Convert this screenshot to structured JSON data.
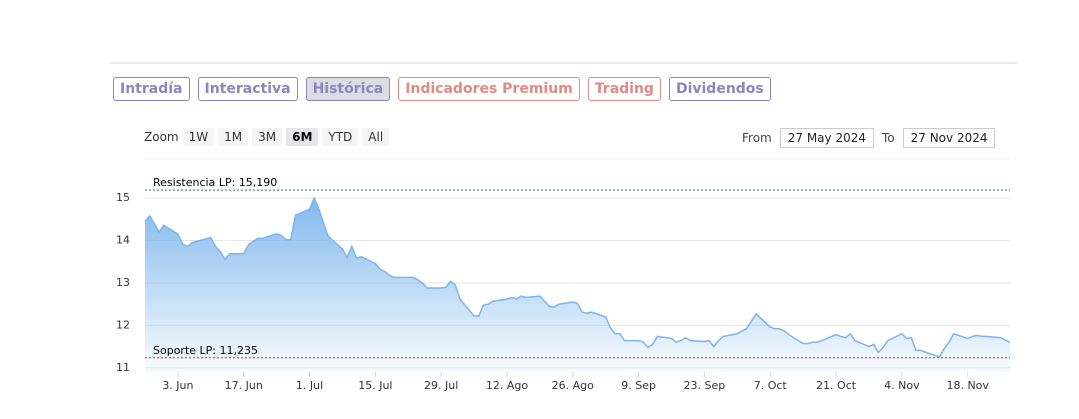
{
  "tabs": [
    {
      "label": "Intradía",
      "color": "#8e84c0"
    },
    {
      "label": "Interactiva",
      "color": "#8e84c0"
    },
    {
      "label": "Histórica",
      "color": "#8e84c0"
    },
    {
      "label": "Indicadores Premium",
      "color": "#e08a86"
    },
    {
      "label": "Trading",
      "color": "#e08a86"
    },
    {
      "label": "Dividendos",
      "color": "#8e84c0"
    }
  ],
  "active_tab": 2,
  "zoom": {
    "label": "Zoom",
    "buttons": [
      "1W",
      "1M",
      "3M",
      "6M",
      "YTD",
      "All"
    ],
    "active": 3
  },
  "range": {
    "from_label": "From",
    "from": "27 May 2024",
    "to_label": "To",
    "to": "27 Nov 2024"
  },
  "chart_data": {
    "type": "area",
    "color": "#7cb5ec",
    "grid": true,
    "xlim": [
      "2024-05-27",
      "2024-11-27"
    ],
    "xticks": [
      {
        "value": "2024-06-03",
        "label": "3. Jun"
      },
      {
        "value": "2024-06-17",
        "label": "17. Jun"
      },
      {
        "value": "2024-07-01",
        "label": "1. Jul"
      },
      {
        "value": "2024-07-15",
        "label": "15. Jul"
      },
      {
        "value": "2024-07-29",
        "label": "29. Jul"
      },
      {
        "value": "2024-08-12",
        "label": "12. Ago"
      },
      {
        "value": "2024-08-26",
        "label": "26. Ago"
      },
      {
        "value": "2024-09-09",
        "label": "9. Sep"
      },
      {
        "value": "2024-09-23",
        "label": "23. Sep"
      },
      {
        "value": "2024-10-07",
        "label": "7. Oct"
      },
      {
        "value": "2024-10-21",
        "label": "21. Oct"
      },
      {
        "value": "2024-11-04",
        "label": "4. Nov"
      },
      {
        "value": "2024-11-18",
        "label": "18. Nov"
      }
    ],
    "ylim": [
      10.9,
      15.9
    ],
    "yticks": [
      11,
      12,
      13,
      14,
      15
    ],
    "plot_lines": [
      {
        "label": "Resistencia LP: 15,190",
        "value": 15.19,
        "color": "#2e7d32"
      },
      {
        "label": "Soporte LP: 11,235",
        "value": 11.235,
        "color": "#c62828"
      }
    ],
    "x": [
      "2024-05-27",
      "2024-05-28",
      "2024-05-29",
      "2024-05-30",
      "2024-05-31",
      "2024-06-03",
      "2024-06-04",
      "2024-06-05",
      "2024-06-06",
      "2024-06-07",
      "2024-06-10",
      "2024-06-11",
      "2024-06-12",
      "2024-06-13",
      "2024-06-14",
      "2024-06-17",
      "2024-06-18",
      "2024-06-19",
      "2024-06-20",
      "2024-06-21",
      "2024-06-24",
      "2024-06-25",
      "2024-06-26",
      "2024-06-27",
      "2024-06-28",
      "2024-07-01",
      "2024-07-02",
      "2024-07-03",
      "2024-07-04",
      "2024-07-05",
      "2024-07-08",
      "2024-07-09",
      "2024-07-10",
      "2024-07-11",
      "2024-07-12",
      "2024-07-15",
      "2024-07-16",
      "2024-07-17",
      "2024-07-18",
      "2024-07-19",
      "2024-07-22",
      "2024-07-23",
      "2024-07-24",
      "2024-07-25",
      "2024-07-26",
      "2024-07-29",
      "2024-07-30",
      "2024-07-31",
      "2024-08-01",
      "2024-08-02",
      "2024-08-05",
      "2024-08-06",
      "2024-08-07",
      "2024-08-08",
      "2024-08-09",
      "2024-08-12",
      "2024-08-13",
      "2024-08-14",
      "2024-08-15",
      "2024-08-16",
      "2024-08-19",
      "2024-08-20",
      "2024-08-21",
      "2024-08-22",
      "2024-08-23",
      "2024-08-26",
      "2024-08-27",
      "2024-08-28",
      "2024-08-29",
      "2024-08-30",
      "2024-09-02",
      "2024-09-03",
      "2024-09-04",
      "2024-09-05",
      "2024-09-06",
      "2024-09-09",
      "2024-09-10",
      "2024-09-11",
      "2024-09-12",
      "2024-09-13",
      "2024-09-16",
      "2024-09-17",
      "2024-09-18",
      "2024-09-19",
      "2024-09-20",
      "2024-09-23",
      "2024-09-24",
      "2024-09-25",
      "2024-09-26",
      "2024-09-27",
      "2024-09-30",
      "2024-10-01",
      "2024-10-02",
      "2024-10-03",
      "2024-10-04",
      "2024-10-07",
      "2024-10-08",
      "2024-10-09",
      "2024-10-10",
      "2024-10-11",
      "2024-10-14",
      "2024-10-15",
      "2024-10-16",
      "2024-10-17",
      "2024-10-18",
      "2024-10-21",
      "2024-10-22",
      "2024-10-23",
      "2024-10-24",
      "2024-10-25",
      "2024-10-28",
      "2024-10-29",
      "2024-10-30",
      "2024-10-31",
      "2024-11-01",
      "2024-11-04",
      "2024-11-05",
      "2024-11-06",
      "2024-11-07",
      "2024-11-08",
      "2024-11-11",
      "2024-11-12",
      "2024-11-13",
      "2024-11-14",
      "2024-11-15",
      "2024-11-18",
      "2024-11-19",
      "2024-11-20",
      "2024-11-21",
      "2024-11-22",
      "2024-11-25",
      "2024-11-27"
    ],
    "values": [
      14.46,
      14.58,
      14.4,
      14.2,
      14.36,
      14.15,
      13.92,
      13.86,
      13.95,
      13.98,
      14.07,
      13.86,
      13.74,
      13.55,
      13.69,
      13.69,
      13.9,
      13.98,
      14.05,
      14.05,
      14.16,
      14.12,
      14.02,
      14.02,
      14.6,
      14.74,
      15.0,
      14.74,
      14.4,
      14.1,
      13.8,
      13.6,
      13.86,
      13.58,
      13.62,
      13.46,
      13.32,
      13.27,
      13.18,
      13.13,
      13.13,
      13.13,
      13.08,
      13.0,
      12.88,
      12.88,
      12.9,
      13.04,
      12.95,
      12.62,
      12.22,
      12.22,
      12.48,
      12.5,
      12.57,
      12.62,
      12.66,
      12.62,
      12.69,
      12.66,
      12.69,
      12.57,
      12.45,
      12.43,
      12.5,
      12.55,
      12.52,
      12.31,
      12.29,
      12.31,
      12.2,
      11.94,
      11.8,
      11.8,
      11.64,
      11.64,
      11.6,
      11.48,
      11.55,
      11.74,
      11.69,
      11.6,
      11.64,
      11.71,
      11.64,
      11.62,
      11.64,
      11.5,
      11.64,
      11.74,
      11.8,
      11.87,
      11.92,
      12.1,
      12.27,
      11.96,
      11.92,
      11.92,
      11.87,
      11.78,
      11.57,
      11.57,
      11.6,
      11.6,
      11.64,
      11.78,
      11.74,
      11.71,
      11.8,
      11.64,
      11.5,
      11.55,
      11.36,
      11.48,
      11.64,
      11.8,
      11.69,
      11.71,
      11.41,
      11.41,
      11.29,
      11.26,
      11.45,
      11.6,
      11.8,
      11.69,
      11.74,
      11.76,
      11.74,
      11.74,
      11.71,
      11.6
    ]
  }
}
